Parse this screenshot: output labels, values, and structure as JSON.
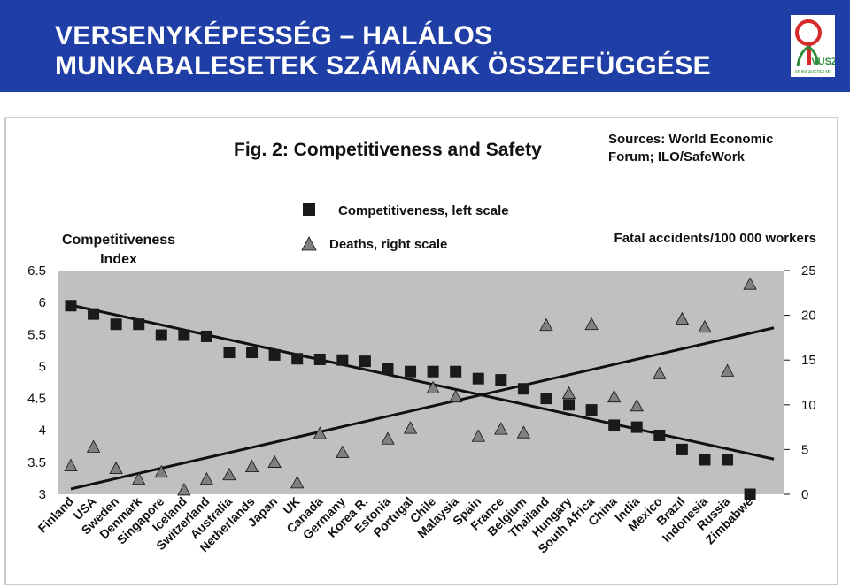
{
  "slide": {
    "title_line1": "VERSENYKÉPESSÉG – HALÁLOS",
    "title_line2": "MUNKABALESETEK SZÁMÁNAK ÖSSZEFÜGGÉSE",
    "logo_text": "VUSZ",
    "logo_small": "MUNKAVÉDELMI"
  },
  "chart_data": {
    "type": "scatter",
    "title": "Fig. 2: Competitiveness and Safety",
    "sources_line1": "Sources: World Economic",
    "sources_line2": "Forum; ILO/SafeWork",
    "ylabel_left_line1": "Competitiveness",
    "ylabel_left_line2": "Index",
    "ylabel_right": "Fatal accidents/100 000 workers",
    "legend_position": "top-center",
    "grid": false,
    "plot_background": "#c0c0c0",
    "ylim_left": [
      3,
      6.5
    ],
    "ylim_right": [
      0,
      25
    ],
    "yticks_left": [
      "3",
      "3.5",
      "4",
      "4.5",
      "5",
      "5.5",
      "6",
      "6.5"
    ],
    "yticks_right": [
      "0",
      "5",
      "10",
      "15",
      "20",
      "25"
    ],
    "categories": [
      "Finland",
      "USA",
      "Sweden",
      "Denmark",
      "Singapore",
      "Iceland",
      "Switzerland",
      "Australia",
      "Netherlands",
      "Japan",
      "UK",
      "Canada",
      "Germany",
      "Korea R.",
      "Estonia",
      "Portugal",
      "Chile",
      "Malaysia",
      "Spain",
      "France",
      "Belgium",
      "Thailand",
      "Hungary",
      "South Africa",
      "China",
      "India",
      "Mexico",
      "Brazil",
      "Indonesia",
      "Russia",
      "Zimbabwe"
    ],
    "series": [
      {
        "name": "Competitiveness, left scale",
        "axis": "left",
        "marker": "square",
        "values": [
          5.95,
          5.82,
          5.66,
          5.66,
          5.49,
          5.49,
          5.47,
          5.22,
          5.22,
          5.18,
          5.12,
          5.11,
          5.1,
          5.08,
          4.96,
          4.92,
          4.92,
          4.92,
          4.81,
          4.79,
          4.65,
          4.5,
          4.4,
          4.32,
          4.08,
          4.05,
          3.92,
          3.7,
          3.54,
          3.54,
          3.0
        ]
      },
      {
        "name": "Deaths, right scale",
        "axis": "right",
        "marker": "triangle",
        "values": [
          3.2,
          5.3,
          2.9,
          1.7,
          2.5,
          0.5,
          1.7,
          2.2,
          3.1,
          3.6,
          1.3,
          6.8,
          4.7,
          null,
          6.2,
          7.4,
          11.9,
          10.9,
          6.5,
          7.3,
          6.9,
          18.9,
          11.3,
          19.0,
          10.9,
          9.9,
          13.5,
          19.6,
          18.7,
          13.8,
          23.5
        ]
      }
    ],
    "trendlines": [
      {
        "series": "Competitiveness, left scale",
        "axis": "left",
        "start": 5.96,
        "end": 3.55
      },
      {
        "series": "Deaths, right scale",
        "axis": "right",
        "start": 0.6,
        "end": 18.6
      }
    ],
    "colors": {
      "competitiveness": "#1a1a1a",
      "deaths": "#808080",
      "trendline": "#111111"
    }
  }
}
